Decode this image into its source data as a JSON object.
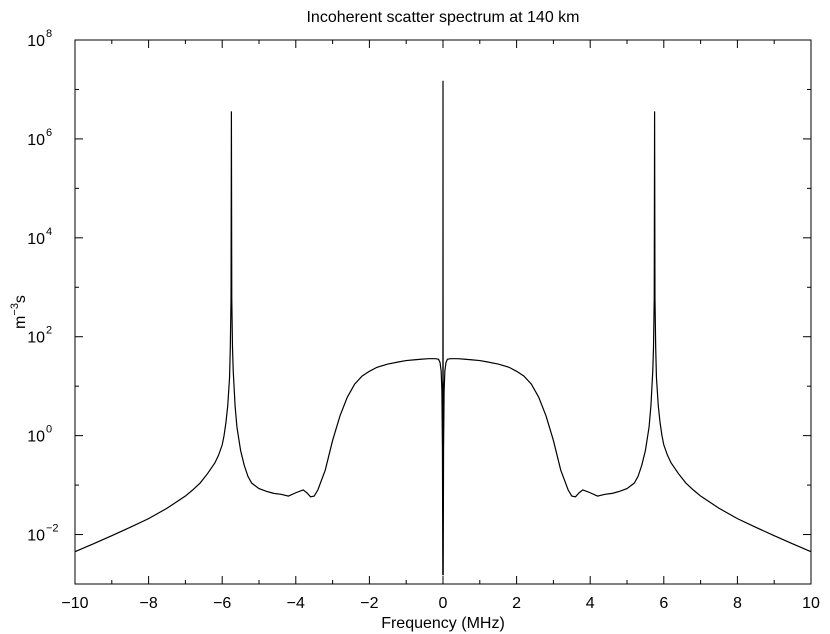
{
  "chart_data": {
    "type": "line",
    "title": "Incoherent scatter spectrum at 140 km",
    "xlabel": "Frequency (MHz)",
    "ylabel_base": "m",
    "ylabel_exp": "−3",
    "ylabel_tail": "s",
    "xlim": [
      -10,
      10
    ],
    "ylim": [
      0.001,
      100000000
    ],
    "yscale": "log",
    "grid": false,
    "x_ticks": [
      -10,
      -8,
      -6,
      -4,
      -2,
      0,
      2,
      4,
      6,
      8,
      10
    ],
    "x_tick_labels": [
      "−10",
      "−8",
      "−6",
      "−4",
      "−2",
      "0",
      "2",
      "4",
      "6",
      "8",
      "10"
    ],
    "y_ticks": [
      {
        "value": 0.01,
        "base": "10",
        "exp": "−2"
      },
      {
        "value": 1,
        "base": "10",
        "exp": "0"
      },
      {
        "value": 100,
        "base": "10",
        "exp": "2"
      },
      {
        "value": 10000,
        "base": "10",
        "exp": "4"
      },
      {
        "value": 1000000,
        "base": "10",
        "exp": "6"
      },
      {
        "value": 100000000,
        "base": "10",
        "exp": "8"
      }
    ],
    "series": [
      {
        "x": [
          -10,
          -9.5,
          -9,
          -8.5,
          -8,
          -7.5,
          -7,
          -6.8,
          -6.6,
          -6.4,
          -6.2,
          -6.1,
          -6,
          -5.95,
          -5.9,
          -5.85,
          -5.8,
          -5.78,
          -5.76,
          -5.75,
          -5.74,
          -5.72,
          -5.7,
          -5.65,
          -5.6,
          -5.5,
          -5.4,
          -5.3,
          -5.2,
          -5,
          -4.8,
          -4.6,
          -4.4,
          -4.2,
          -4,
          -3.8,
          -3.7,
          -3.6,
          -3.5,
          -3.4,
          -3.2,
          -3,
          -2.8,
          -2.6,
          -2.4,
          -2.2,
          -2,
          -1.8,
          -1.5,
          -1.2,
          -1,
          -0.8,
          -0.6,
          -0.4,
          -0.2,
          -0.12,
          -0.08,
          -0.05,
          -0.03,
          -0.015,
          -0.005,
          0,
          0.005,
          0.015,
          0.03,
          0.05,
          0.08,
          0.12,
          0.2,
          0.4,
          0.6,
          0.8,
          1,
          1.2,
          1.5,
          1.8,
          2,
          2.2,
          2.4,
          2.6,
          2.8,
          3,
          3.2,
          3.4,
          3.5,
          3.6,
          3.7,
          3.8,
          4,
          4.2,
          4.4,
          4.6,
          4.8,
          5,
          5.2,
          5.3,
          5.4,
          5.5,
          5.6,
          5.65,
          5.7,
          5.72,
          5.74,
          5.75,
          5.76,
          5.78,
          5.8,
          5.85,
          5.9,
          5.95,
          6,
          6.1,
          6.2,
          6.4,
          6.6,
          6.8,
          7,
          7.5,
          8,
          8.5,
          9,
          9.5,
          10
        ],
        "y": [
          0.0045,
          0.0065,
          0.0095,
          0.014,
          0.021,
          0.034,
          0.06,
          0.08,
          0.11,
          0.17,
          0.28,
          0.4,
          0.65,
          1,
          1.8,
          4,
          15,
          60,
          600,
          3600000,
          600,
          60,
          20,
          4,
          1.5,
          0.5,
          0.25,
          0.15,
          0.11,
          0.085,
          0.075,
          0.068,
          0.065,
          0.06,
          0.07,
          0.08,
          0.07,
          0.058,
          0.06,
          0.08,
          0.2,
          0.8,
          2.5,
          6,
          11,
          16,
          20,
          24,
          28,
          31,
          33,
          34,
          35,
          36,
          36,
          35,
          30,
          20,
          8,
          0.5,
          0.0015,
          15000000,
          0.0015,
          0.5,
          8,
          20,
          30,
          35,
          36,
          36,
          35,
          34,
          33,
          31,
          28,
          24,
          20,
          16,
          11,
          6,
          2.5,
          0.8,
          0.2,
          0.08,
          0.06,
          0.058,
          0.07,
          0.08,
          0.07,
          0.06,
          0.065,
          0.068,
          0.075,
          0.085,
          0.11,
          0.15,
          0.25,
          0.5,
          1.5,
          4,
          20,
          60,
          600,
          3600000,
          600,
          60,
          15,
          4,
          1.8,
          1,
          0.65,
          0.4,
          0.28,
          0.17,
          0.11,
          0.08,
          0.06,
          0.034,
          0.021,
          0.014,
          0.0095,
          0.0065,
          0.0045
        ]
      }
    ]
  }
}
